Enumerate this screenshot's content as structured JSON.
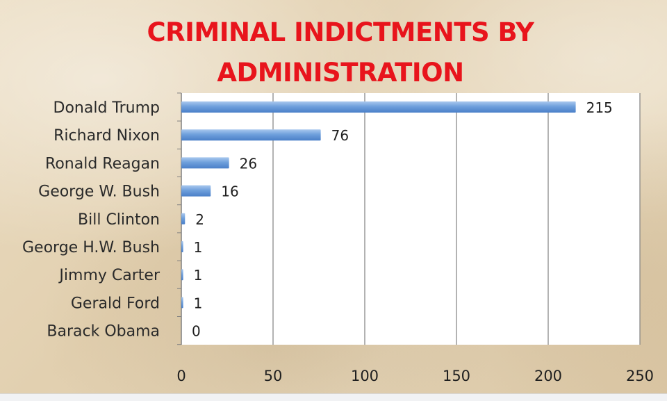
{
  "chart_data": {
    "type": "bar",
    "orientation": "horizontal",
    "title": "CRIMINAL INDICTMENTS BY ADMINISTRATION",
    "title_lines": [
      "CRIMINAL INDICTMENTS BY",
      "ADMINISTRATION"
    ],
    "categories": [
      "Donald Trump",
      "Richard Nixon",
      "Ronald Reagan",
      "George W. Bush",
      "Bill Clinton",
      "George H.W. Bush",
      "Jimmy Carter",
      "Gerald Ford",
      "Barack Obama"
    ],
    "values": [
      215,
      76,
      26,
      16,
      2,
      1,
      1,
      1,
      0
    ],
    "value_labels": [
      "215",
      "76",
      "26",
      "16",
      "2",
      "1",
      "1",
      "1",
      "0"
    ],
    "xlim": [
      0,
      250
    ],
    "xticks": [
      0,
      50,
      100,
      150,
      200,
      250
    ],
    "xtick_labels": [
      "0",
      "50",
      "100",
      "150",
      "200",
      "250"
    ],
    "grid": true,
    "legend": "none",
    "colors": {
      "title": "#e8141c",
      "bar_top": "#a9c8ee",
      "bar_mid": "#6fa0dc",
      "bar_bottom": "#4a7fc8",
      "gridline": "#808080",
      "plot_bg": "#ffffff"
    }
  }
}
